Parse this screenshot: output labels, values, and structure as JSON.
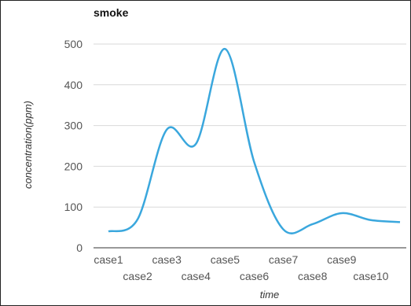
{
  "chart_data": {
    "type": "line",
    "title": "smoke",
    "xlabel": "time",
    "ylabel": "concentration(ppm)",
    "categories": [
      "case1",
      "case2",
      "case3",
      "case4",
      "case5",
      "case6",
      "case7",
      "case8",
      "case9",
      "case10"
    ],
    "series": [
      {
        "values": [
          40,
          70,
          290,
          255,
          488,
          210,
          45,
          58,
          85,
          68
        ],
        "color": "#3aa7dd"
      }
    ],
    "extra_point_after_last": 63,
    "ylim": [
      0,
      500
    ],
    "yticks": [
      0,
      100,
      200,
      300,
      400,
      500
    ],
    "grid": true,
    "legend": "none"
  }
}
